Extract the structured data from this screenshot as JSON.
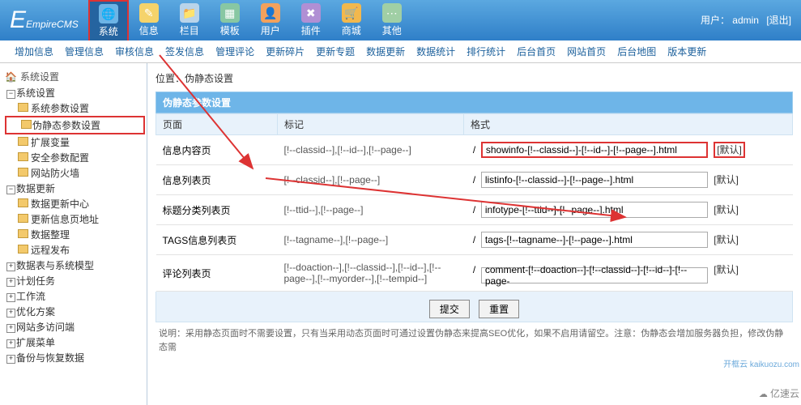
{
  "logo": "EmpireCMS",
  "user": {
    "label": "用户：",
    "name": "admin",
    "logout": "[退出]"
  },
  "topnav": [
    {
      "label": "系统",
      "color": "#6db4e6",
      "glyph": "🌐",
      "selected": true
    },
    {
      "label": "信息",
      "color": "#f5d36b",
      "glyph": "✎"
    },
    {
      "label": "栏目",
      "color": "#b9d4ea",
      "glyph": "📁"
    },
    {
      "label": "模板",
      "color": "#88c7a3",
      "glyph": "▦"
    },
    {
      "label": "用户",
      "color": "#f2a15d",
      "glyph": "👤"
    },
    {
      "label": "插件",
      "color": "#b08fd4",
      "glyph": "✖"
    },
    {
      "label": "商城",
      "color": "#f2b84d",
      "glyph": "🛒"
    },
    {
      "label": "其他",
      "color": "#a0cfa5",
      "glyph": "⋯"
    }
  ],
  "subnav": [
    "增加信息",
    "管理信息",
    "审核信息",
    "签发信息",
    "管理评论",
    "更新碎片",
    "更新专题",
    "数据更新",
    "数据统计",
    "排行统计",
    "后台首页",
    "网站首页",
    "后台地图",
    "版本更新"
  ],
  "sidebar": {
    "title": "系统设置",
    "groups": [
      {
        "label": "系统设置",
        "open": true,
        "children": [
          "系统参数设置",
          "伪静态参数设置",
          "扩展变量",
          "安全参数配置",
          "网站防火墙"
        ]
      },
      {
        "label": "数据更新",
        "open": true,
        "children": [
          "数据更新中心",
          "更新信息页地址",
          "数据整理",
          "远程发布"
        ]
      },
      {
        "label": "数据表与系统模型",
        "open": false
      },
      {
        "label": "计划任务",
        "open": false
      },
      {
        "label": "工作流",
        "open": false
      },
      {
        "label": "优化方案",
        "open": false
      },
      {
        "label": "网站多访问端",
        "open": false
      },
      {
        "label": "扩展菜单",
        "open": false
      },
      {
        "label": "备份与恢复数据",
        "open": false
      }
    ],
    "highlight": "伪静态参数设置"
  },
  "content": {
    "crumb": "位置：伪静态设置",
    "panel_title": "伪静态参数设置",
    "columns": [
      "页面",
      "标记",
      "格式"
    ],
    "rows": [
      {
        "page": "信息内容页",
        "mark": "[!--classid--],[!--id--],[!--page--]",
        "fmt": "showinfo-[!--classid--]-[!--id--]-[!--page--].html",
        "hl": true,
        "def_hl": true
      },
      {
        "page": "信息列表页",
        "mark": "[!--classid--],[!--page--]",
        "fmt": "listinfo-[!--classid--]-[!--page--].html"
      },
      {
        "page": "标题分类列表页",
        "mark": "[!--ttid--],[!--page--]",
        "fmt": "infotype-[!--ttid--]-[!--page--].html"
      },
      {
        "page": "TAGS信息列表页",
        "mark": "[!--tagname--],[!--page--]",
        "fmt": "tags-[!--tagname--]-[!--page--].html"
      },
      {
        "page": "评论列表页",
        "mark": "[!--doaction--],[!--classid--],[!--id--],[!--page--],[!--myorder--],[!--tempid--]",
        "fmt": "comment-[!--doaction--]-[!--classid--]-[!--id--]-[!--page-"
      }
    ],
    "default_label": "[默认]",
    "submit": "提交",
    "reset": "重置",
    "note": "说明：采用静态页面时不需要设置，只有当采用动态页面时可通过设置伪静态来提高SEO优化，如果不启用请留空。注意：伪静态会增加服务器负担，修改伪静态需",
    "slash": "/"
  },
  "annotation": {
    "arrow_color": "#d33"
  },
  "watermark1": "开框云 kaikuozu.com",
  "watermark2": "亿速云"
}
